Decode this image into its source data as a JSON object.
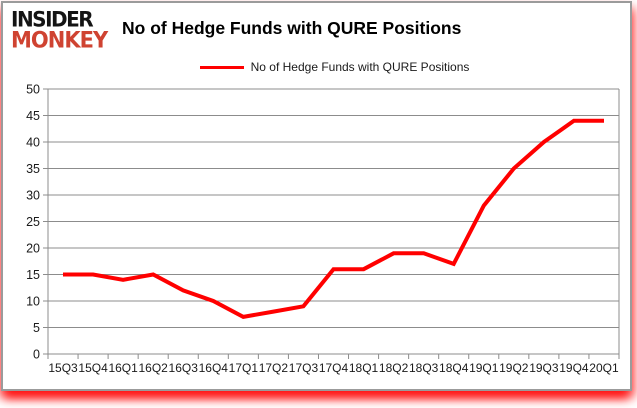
{
  "branding": {
    "line1": "INSIDER",
    "line2": "MONKEY"
  },
  "header": {
    "title": "No of Hedge Funds with QURE Positions"
  },
  "legend": {
    "label": "No of Hedge Funds with QURE Positions"
  },
  "chart_data": {
    "type": "line",
    "title": "No of Hedge Funds with QURE Positions",
    "categories": [
      "15Q3",
      "15Q4",
      "16Q1",
      "16Q2",
      "16Q3",
      "16Q4",
      "17Q1",
      "17Q2",
      "17Q3",
      "17Q4",
      "18Q1",
      "18Q2",
      "18Q3",
      "18Q4",
      "19Q1",
      "19Q2",
      "19Q3",
      "19Q4",
      "20Q1"
    ],
    "series": [
      {
        "name": "No of Hedge Funds with QURE Positions",
        "color": "#FF0000",
        "values": [
          15,
          15,
          14,
          15,
          12,
          10,
          7,
          8,
          9,
          16,
          16,
          19,
          19,
          17,
          28,
          35,
          40,
          44,
          44
        ]
      }
    ],
    "xlabel": "",
    "ylabel": "",
    "ylim": [
      0,
      50
    ],
    "ytick_step": 5,
    "yticks": [
      0,
      5,
      10,
      15,
      20,
      25,
      30,
      35,
      40,
      45,
      50
    ],
    "grid": "horizontal",
    "legend_position": "top-center"
  },
  "colors": {
    "line": "#FF0000",
    "logo_red": "#CF4331",
    "logo_black": "#141414",
    "grid": "#8C8C8C",
    "text": "#1A1A1A",
    "background": "#FFFFFF"
  }
}
